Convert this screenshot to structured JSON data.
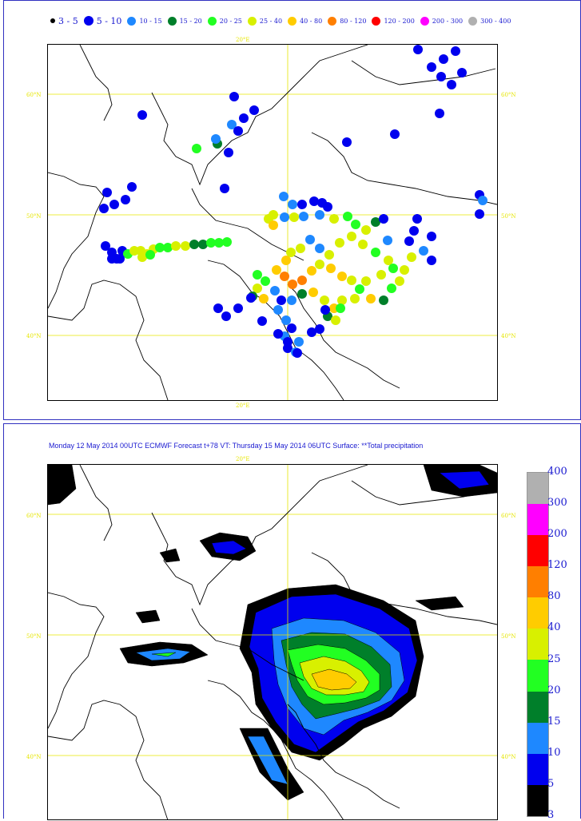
{
  "top_panel": {
    "legend": [
      {
        "label": "3 - 5",
        "color": "#000000",
        "size": "small"
      },
      {
        "label": "5 - 10",
        "color": "#0000ee",
        "size": "big"
      },
      {
        "label": "10 - 15",
        "color": "#1e88ff",
        "size": "med"
      },
      {
        "label": "15 - 20",
        "color": "#007f2a",
        "size": "med"
      },
      {
        "label": "20 - 25",
        "color": "#22ff22",
        "size": "med"
      },
      {
        "label": "25 - 40",
        "color": "#d8f000",
        "size": "med"
      },
      {
        "label": "40 - 80",
        "color": "#ffcc00",
        "size": "med"
      },
      {
        "label": "80 - 120",
        "color": "#ff7f00",
        "size": "med"
      },
      {
        "label": "120 - 200",
        "color": "#ff0000",
        "size": "med"
      },
      {
        "label": "200 - 300",
        "color": "#ff00ff",
        "size": "med"
      },
      {
        "label": "300 - 400",
        "color": "#b0b0b0",
        "size": "med"
      }
    ],
    "lon_label": "20°E",
    "lat_labels": [
      "60°N",
      "50°N",
      "40°N"
    ]
  },
  "bottom_panel": {
    "title": "Monday 12 May 2014 00UTC ECMWF  Forecast t+78 VT: Thursday 15 May 2014 06UTC Surface: **Total precipitation",
    "lon_label": "20°E",
    "lat_labels": [
      "60°N",
      "50°N",
      "40°N"
    ],
    "colorbar": {
      "levels": [
        "400",
        "300",
        "200",
        "120",
        "80",
        "40",
        "25",
        "20",
        "15",
        "10",
        "5",
        "3"
      ],
      "colors": [
        "#b0b0b0",
        "#ff00ff",
        "#ff0000",
        "#ff7f00",
        "#ffcc00",
        "#d8f000",
        "#22ff22",
        "#007f2a",
        "#1e88ff",
        "#0000ee",
        "#000000"
      ]
    }
  }
}
